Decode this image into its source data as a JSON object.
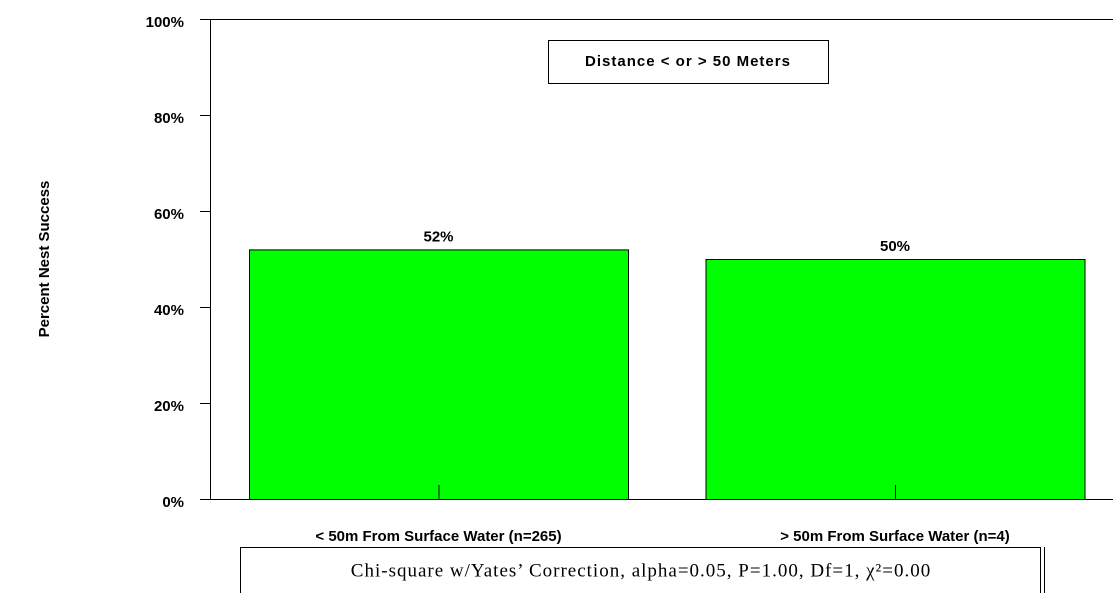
{
  "chart_data": {
    "type": "bar",
    "y_label": "Percent Nest Success",
    "categories": [
      "< 50m From Surface Water (n=265)",
      "> 50m From Surface Water (n=4)"
    ],
    "series": [
      {
        "name": "Distance < or > 50 Meters",
        "color": "#00ff00",
        "values": [
          52,
          50
        ],
        "value_labels": [
          "52%",
          "50%"
        ]
      }
    ],
    "ylim": [
      0,
      100
    ],
    "yticks": [
      {
        "value": 0,
        "label": "0%"
      },
      {
        "value": 20,
        "label": "20%"
      },
      {
        "value": 40,
        "label": "40%"
      },
      {
        "value": 60,
        "label": "60%"
      },
      {
        "value": 80,
        "label": "80%"
      },
      {
        "value": 100,
        "label": "100%"
      }
    ],
    "grid": false,
    "legend": "top",
    "note": "Chi-square w/Yates’ Correction, alpha=0.05, P=1.00, Df=1, χ²=0.00"
  }
}
